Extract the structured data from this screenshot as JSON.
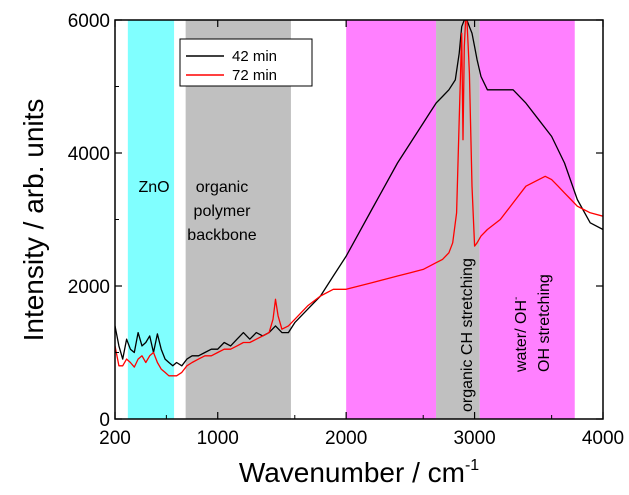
{
  "chart_data": {
    "type": "line",
    "xlabel": "Wavenumber / cm",
    "xlabel_superscript": "-1",
    "ylabel": "Intensity / arb. units",
    "xlim": [
      200,
      4000
    ],
    "ylim": [
      0,
      6000
    ],
    "x_ticks": [
      "200",
      "1000",
      "2000",
      "3000",
      "4000"
    ],
    "y_ticks": [
      "0",
      "2000",
      "4000",
      "6000"
    ],
    "x_tick_values": [
      200,
      1000,
      2000,
      3000,
      4000
    ],
    "y_tick_values": [
      0,
      2000,
      4000,
      6000
    ],
    "grid": false,
    "legend_position": "top-center",
    "regions": [
      {
        "id": "zno",
        "x0": 300,
        "x1": 660,
        "color": "#80ffff",
        "label_lines": [
          "ZnO"
        ]
      },
      {
        "id": "polymer",
        "x0": 750,
        "x1": 1570,
        "color": "#c0c0c0",
        "label_lines": [
          "organic",
          "polymer",
          "backbone"
        ]
      },
      {
        "id": "water-oh-left",
        "x0": 2000,
        "x1": 2700,
        "color": "#ff80ff",
        "label_lines": []
      },
      {
        "id": "ch",
        "x0": 2700,
        "x1": 3040,
        "color": "#c0c0c0",
        "label_lines": [
          "organic CH stretching"
        ]
      },
      {
        "id": "water-oh-right",
        "x0": 3040,
        "x1": 3780,
        "color": "#ff80ff",
        "label_lines": [
          "water/ OH",
          "OH stretching"
        ],
        "label_superscript": "-"
      }
    ],
    "series": [
      {
        "name": "42 min",
        "color": "#000000",
        "x": [
          200,
          230,
          260,
          290,
          320,
          350,
          380,
          410,
          440,
          470,
          500,
          530,
          560,
          590,
          620,
          650,
          680,
          720,
          760,
          800,
          850,
          900,
          950,
          1000,
          1050,
          1100,
          1150,
          1200,
          1250,
          1300,
          1350,
          1400,
          1450,
          1500,
          1550,
          1600,
          1700,
          1800,
          1900,
          2000,
          2100,
          2200,
          2300,
          2400,
          2500,
          2600,
          2650,
          2700,
          2750,
          2800,
          2850,
          2880,
          2900,
          2920,
          2940,
          2960,
          2980,
          3000,
          3020,
          3050,
          3100,
          3200,
          3300,
          3400,
          3500,
          3600,
          3700,
          3800,
          3900,
          4000
        ],
        "y": [
          1400,
          1100,
          900,
          1200,
          1050,
          1000,
          1300,
          1100,
          1150,
          1250,
          1000,
          1280,
          1050,
          900,
          850,
          800,
          850,
          800,
          900,
          950,
          950,
          1000,
          1050,
          1050,
          1150,
          1100,
          1200,
          1300,
          1200,
          1300,
          1250,
          1300,
          1400,
          1300,
          1300,
          1450,
          1650,
          1850,
          2150,
          2450,
          2800,
          3150,
          3500,
          3850,
          4150,
          4450,
          4600,
          4750,
          4850,
          4950,
          5100,
          5500,
          5900,
          6000,
          6000,
          5900,
          5800,
          5600,
          5400,
          5150,
          4950,
          4950,
          4950,
          4750,
          4500,
          4250,
          3850,
          3300,
          2950,
          2850
        ]
      },
      {
        "name": "72 min",
        "color": "#ff0000",
        "x": [
          200,
          230,
          260,
          290,
          320,
          350,
          380,
          410,
          440,
          470,
          500,
          530,
          560,
          590,
          620,
          650,
          680,
          720,
          760,
          800,
          850,
          900,
          950,
          1000,
          1050,
          1100,
          1150,
          1200,
          1250,
          1300,
          1350,
          1400,
          1430,
          1450,
          1470,
          1500,
          1550,
          1600,
          1700,
          1800,
          1900,
          2000,
          2100,
          2200,
          2300,
          2400,
          2500,
          2600,
          2700,
          2750,
          2800,
          2830,
          2860,
          2880,
          2900,
          2910,
          2920,
          2930,
          2940,
          2950,
          2960,
          2980,
          3000,
          3020,
          3050,
          3100,
          3200,
          3300,
          3400,
          3500,
          3550,
          3600,
          3650,
          3700,
          3750,
          3800,
          3850,
          3900,
          4000
        ],
        "y": [
          1100,
          800,
          800,
          900,
          850,
          780,
          900,
          950,
          850,
          950,
          1000,
          850,
          750,
          700,
          650,
          650,
          650,
          700,
          800,
          850,
          900,
          950,
          950,
          1000,
          1050,
          1050,
          1100,
          1150,
          1150,
          1200,
          1250,
          1300,
          1500,
          1800,
          1550,
          1350,
          1400,
          1500,
          1700,
          1850,
          1950,
          1950,
          2000,
          2050,
          2100,
          2150,
          2200,
          2250,
          2350,
          2400,
          2500,
          2650,
          3100,
          4500,
          5800,
          4200,
          5600,
          6000,
          6000,
          5600,
          5200,
          3500,
          2600,
          2650,
          2750,
          2850,
          3000,
          3250,
          3500,
          3600,
          3650,
          3600,
          3500,
          3400,
          3300,
          3200,
          3150,
          3100,
          3050
        ]
      }
    ]
  }
}
